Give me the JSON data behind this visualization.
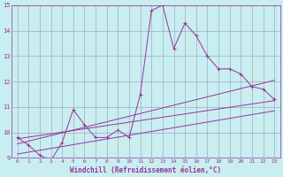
{
  "xlabel": "Windchill (Refroidissement éolien,°C)",
  "xlim": [
    -0.5,
    23.5
  ],
  "ylim": [
    9,
    15
  ],
  "yticks": [
    9,
    10,
    11,
    12,
    13,
    14,
    15
  ],
  "xticks": [
    0,
    1,
    2,
    3,
    4,
    5,
    6,
    7,
    8,
    9,
    10,
    11,
    12,
    13,
    14,
    15,
    16,
    17,
    18,
    19,
    20,
    21,
    22,
    23
  ],
  "background_color": "#c8eef0",
  "grid_color": "#9999bb",
  "line_color": "#993399",
  "main_line": {
    "x": [
      0,
      1,
      2,
      3,
      4,
      5,
      6,
      7,
      8,
      9,
      10,
      11,
      12,
      13,
      14,
      15,
      16,
      17,
      18,
      19,
      20,
      21,
      22,
      23
    ],
    "y": [
      9.8,
      9.5,
      9.1,
      8.9,
      9.6,
      10.9,
      10.3,
      9.8,
      9.8,
      10.1,
      9.8,
      11.5,
      14.8,
      15.0,
      13.3,
      14.3,
      13.8,
      13.0,
      12.5,
      12.5,
      12.3,
      11.8,
      11.7,
      11.3
    ]
  },
  "reg_lines": [
    {
      "x": [
        0,
        23
      ],
      "y": [
        9.75,
        11.25
      ]
    },
    {
      "x": [
        0,
        23
      ],
      "y": [
        9.55,
        12.05
      ]
    },
    {
      "x": [
        0,
        23
      ],
      "y": [
        9.15,
        10.85
      ]
    }
  ]
}
